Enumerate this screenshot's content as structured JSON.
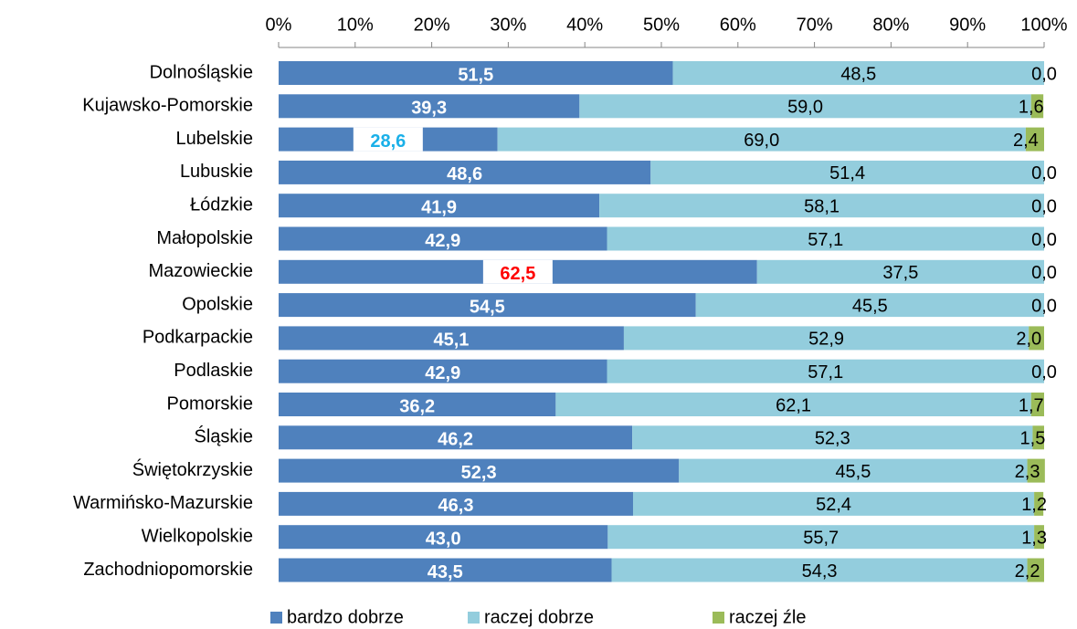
{
  "chart_data": {
    "type": "stacked_barh",
    "categories": [
      "Dolnośląskie",
      "Kujawsko-Pomorskie",
      "Lubelskie",
      "Lubuskie",
      "Łódzkie",
      "Małopolskie",
      "Mazowieckie",
      "Opolskie",
      "Podkarpackie",
      "Podlaskie",
      "Pomorskie",
      "Śląskie",
      "Świętokrzyskie",
      "Warmińsko-Mazurskie",
      "Wielkopolskie",
      "Zachodniopomorskie"
    ],
    "series": [
      {
        "name": "bardzo dobrze",
        "color": "#4f81bd",
        "values": [
          51.5,
          39.3,
          28.6,
          48.6,
          41.9,
          42.9,
          62.5,
          54.5,
          45.1,
          42.9,
          36.2,
          46.2,
          52.3,
          46.3,
          43.0,
          43.5
        ],
        "value_labels": [
          "51,5",
          "39,3",
          "28,6",
          "48,6",
          "41,9",
          "42,9",
          "62,5",
          "54,5",
          "45,1",
          "42,9",
          "36,2",
          "46,2",
          "52,3",
          "46,3",
          "43,0",
          "43,5"
        ],
        "value_label_colors": [
          "#ffffff",
          "#ffffff",
          "#1ab0e8",
          "#ffffff",
          "#ffffff",
          "#ffffff",
          "#ff0000",
          "#ffffff",
          "#ffffff",
          "#ffffff",
          "#ffffff",
          "#ffffff",
          "#ffffff",
          "#ffffff",
          "#ffffff",
          "#ffffff"
        ]
      },
      {
        "name": "raczej dobrze",
        "color": "#93cddd",
        "values": [
          48.5,
          59.0,
          69.0,
          51.4,
          58.1,
          57.1,
          37.5,
          45.5,
          52.9,
          57.1,
          62.1,
          52.3,
          45.5,
          52.4,
          55.7,
          54.3
        ],
        "value_labels": [
          "48,5",
          "59,0",
          "69,0",
          "51,4",
          "58,1",
          "57,1",
          "37,5",
          "45,5",
          "52,9",
          "57,1",
          "62,1",
          "52,3",
          "45,5",
          "52,4",
          "55,7",
          "54,3"
        ]
      },
      {
        "name": "raczej źle",
        "color": "#9bbb59",
        "values": [
          0.0,
          1.6,
          2.4,
          0.0,
          0.0,
          0.0,
          0.0,
          0.0,
          2.0,
          0.0,
          1.7,
          1.5,
          2.3,
          1.2,
          1.3,
          2.2
        ],
        "value_labels": [
          "0,0",
          "1,6",
          "2,4",
          "0,0",
          "0,0",
          "0,0",
          "0,0",
          "0,0",
          "2,0",
          "0,0",
          "1,7",
          "1,5",
          "2,3",
          "1,2",
          "1,3",
          "2,2"
        ]
      }
    ],
    "xlim": [
      0,
      100
    ],
    "xticks": [
      {
        "value": 0,
        "label": "0%"
      },
      {
        "value": 10,
        "label": "10%"
      },
      {
        "value": 20,
        "label": "20%"
      },
      {
        "value": 30,
        "label": "30%"
      },
      {
        "value": 40,
        "label": "40%"
      },
      {
        "value": 50,
        "label": "50%"
      },
      {
        "value": 60,
        "label": "60%"
      },
      {
        "value": 70,
        "label": "70%"
      },
      {
        "value": 80,
        "label": "80%"
      },
      {
        "value": 90,
        "label": "90%"
      },
      {
        "value": 100,
        "label": "100%"
      }
    ],
    "legend": "bottom"
  }
}
